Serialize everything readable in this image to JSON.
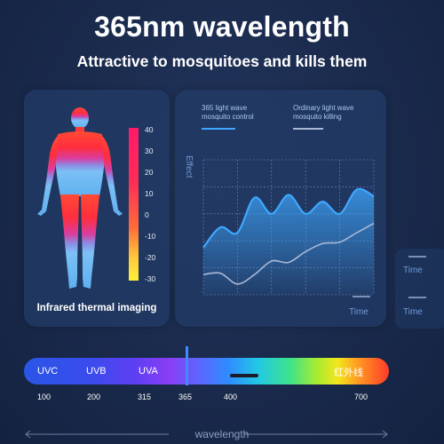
{
  "header": {
    "title": "365nm wavelength",
    "subtitle": "Attractive to mosquitoes and kills them"
  },
  "thermal": {
    "label": "Infrared thermal imaging",
    "scale": [
      "40",
      "30",
      "20",
      "10",
      "0",
      "-10",
      "-20",
      "-30"
    ]
  },
  "chart_data": {
    "type": "line",
    "title": "",
    "xlabel": "Time",
    "ylabel": "Effect",
    "legend_placement": "top",
    "grid": true,
    "series": [
      {
        "name": "365 light wave mosquito control",
        "color": "#3fa7ff",
        "x": [
          0,
          1,
          2,
          3,
          4,
          5,
          6,
          7,
          8,
          9,
          10
        ],
        "values": [
          3.5,
          5.0,
          4.6,
          7.2,
          6.0,
          7.4,
          6.0,
          6.9,
          6.0,
          7.8,
          7.3
        ]
      },
      {
        "name": "Ordinary light wave mosquito killing",
        "color": "#aab8d6",
        "x": [
          0,
          1,
          2,
          3,
          4,
          5,
          6,
          7,
          8,
          9,
          10
        ],
        "values": [
          1.5,
          1.6,
          0.8,
          1.5,
          2.5,
          2.4,
          3.2,
          3.8,
          3.9,
          4.6,
          5.3
        ]
      }
    ],
    "ylim": [
      0,
      10
    ]
  },
  "legend": {
    "line1_a": "365 light wave",
    "line1_b": "mosquito control",
    "line2_a": "Ordinary light wave",
    "line2_b": "mosquito killing"
  },
  "axis": {
    "y_label": "Effect",
    "x_label": "Time",
    "ghost_time_1": "Time",
    "ghost_time_2": "Time"
  },
  "spectrum": {
    "bands": [
      "UVC",
      "UVB",
      "UVA",
      "红外线"
    ],
    "ticks": [
      "100",
      "200",
      "315",
      "365",
      "400",
      "700"
    ],
    "axis_label": "wavelength"
  },
  "colors": {
    "background": "#1a2a4c",
    "card": "#213a64",
    "accent_blue": "#3fa7ff",
    "ordinary_line": "#aab8d6",
    "marker": "#3f8cff"
  }
}
